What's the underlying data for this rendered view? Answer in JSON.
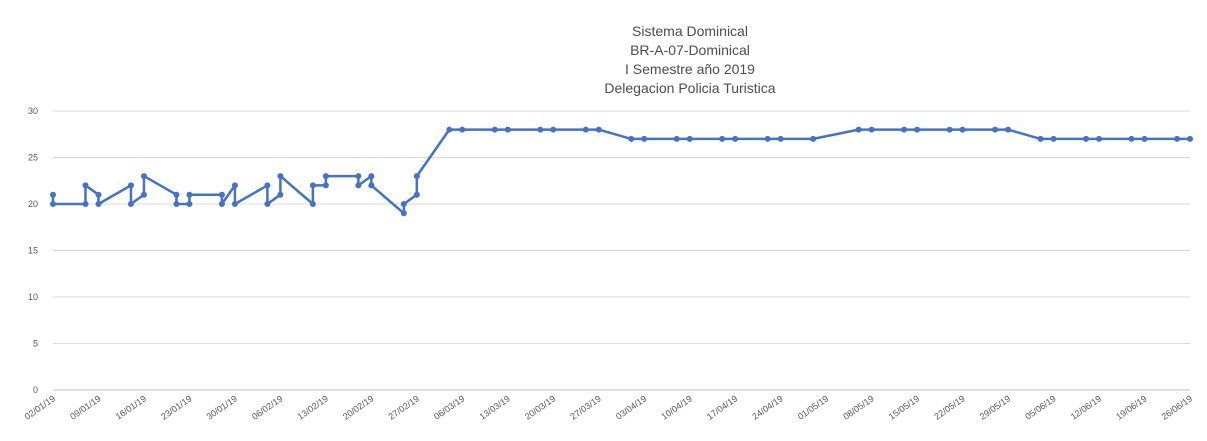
{
  "chart_data": {
    "type": "line",
    "title": [
      "Sistema Dominical",
      "BR-A-07-Dominical",
      "I Semestre año 2019",
      "Delegacion Policia Turistica"
    ],
    "x": [
      "02/01/19",
      "02/01/19",
      "07/01/19",
      "07/01/19",
      "09/01/19",
      "09/01/19",
      "14/01/19",
      "14/01/19",
      "16/01/19",
      "16/01/19",
      "21/01/19",
      "21/01/19",
      "23/01/19",
      "23/01/19",
      "28/01/19",
      "28/01/19",
      "30/01/19",
      "30/01/19",
      "04/02/19",
      "04/02/19",
      "06/02/19",
      "06/02/19",
      "11/02/19",
      "11/02/19",
      "13/02/19",
      "13/02/19",
      "18/02/19",
      "18/02/19",
      "20/02/19",
      "20/02/19",
      "25/02/19",
      "25/02/19",
      "27/02/19",
      "27/02/19",
      "04/03/19",
      "06/03/19",
      "11/03/19",
      "13/03/19",
      "18/03/19",
      "20/03/19",
      "25/03/19",
      "27/03/19",
      "01/04/19",
      "03/04/19",
      "08/04/19",
      "10/04/19",
      "15/04/19",
      "17/04/19",
      "22/04/19",
      "24/04/19",
      "29/04/19",
      "06/05/19",
      "08/05/19",
      "13/05/19",
      "15/05/19",
      "20/05/19",
      "22/05/19",
      "27/05/19",
      "29/05/19",
      "03/06/19",
      "05/06/19",
      "10/06/19",
      "12/06/19",
      "17/06/19",
      "19/06/19",
      "24/06/19",
      "26/06/19"
    ],
    "series": [
      {
        "name": "Sistema Dominical",
        "color": "#4472c4",
        "values": [
          21,
          20,
          20,
          22,
          21,
          20,
          22,
          20,
          21,
          23,
          21,
          20,
          20,
          21,
          21,
          20,
          22,
          20,
          22,
          20,
          21,
          23,
          20,
          22,
          22,
          23,
          23,
          22,
          23,
          22,
          19,
          20,
          21,
          23,
          28,
          28,
          28,
          28,
          28,
          28,
          28,
          28,
          27,
          27,
          27,
          27,
          27,
          27,
          27,
          27,
          27,
          28,
          28,
          28,
          28,
          28,
          28,
          28,
          28,
          27,
          27,
          27,
          27,
          27,
          27,
          27,
          27
        ]
      }
    ],
    "xlim": [
      "02/01/19",
      "26/06/19"
    ],
    "xticks": [
      "02/01/19",
      "09/01/19",
      "16/01/19",
      "23/01/19",
      "30/01/19",
      "06/02/19",
      "13/02/19",
      "20/02/19",
      "27/02/19",
      "06/03/19",
      "13/03/19",
      "20/03/19",
      "27/03/19",
      "03/04/19",
      "10/04/19",
      "17/04/19",
      "24/04/19",
      "01/05/19",
      "08/05/19",
      "15/05/19",
      "22/05/19",
      "29/05/19",
      "05/06/19",
      "12/06/19",
      "19/06/19",
      "26/06/19"
    ],
    "ylim": [
      0,
      30
    ],
    "yticks": [
      0,
      5,
      10,
      15,
      20,
      25,
      30
    ],
    "grid": true
  }
}
